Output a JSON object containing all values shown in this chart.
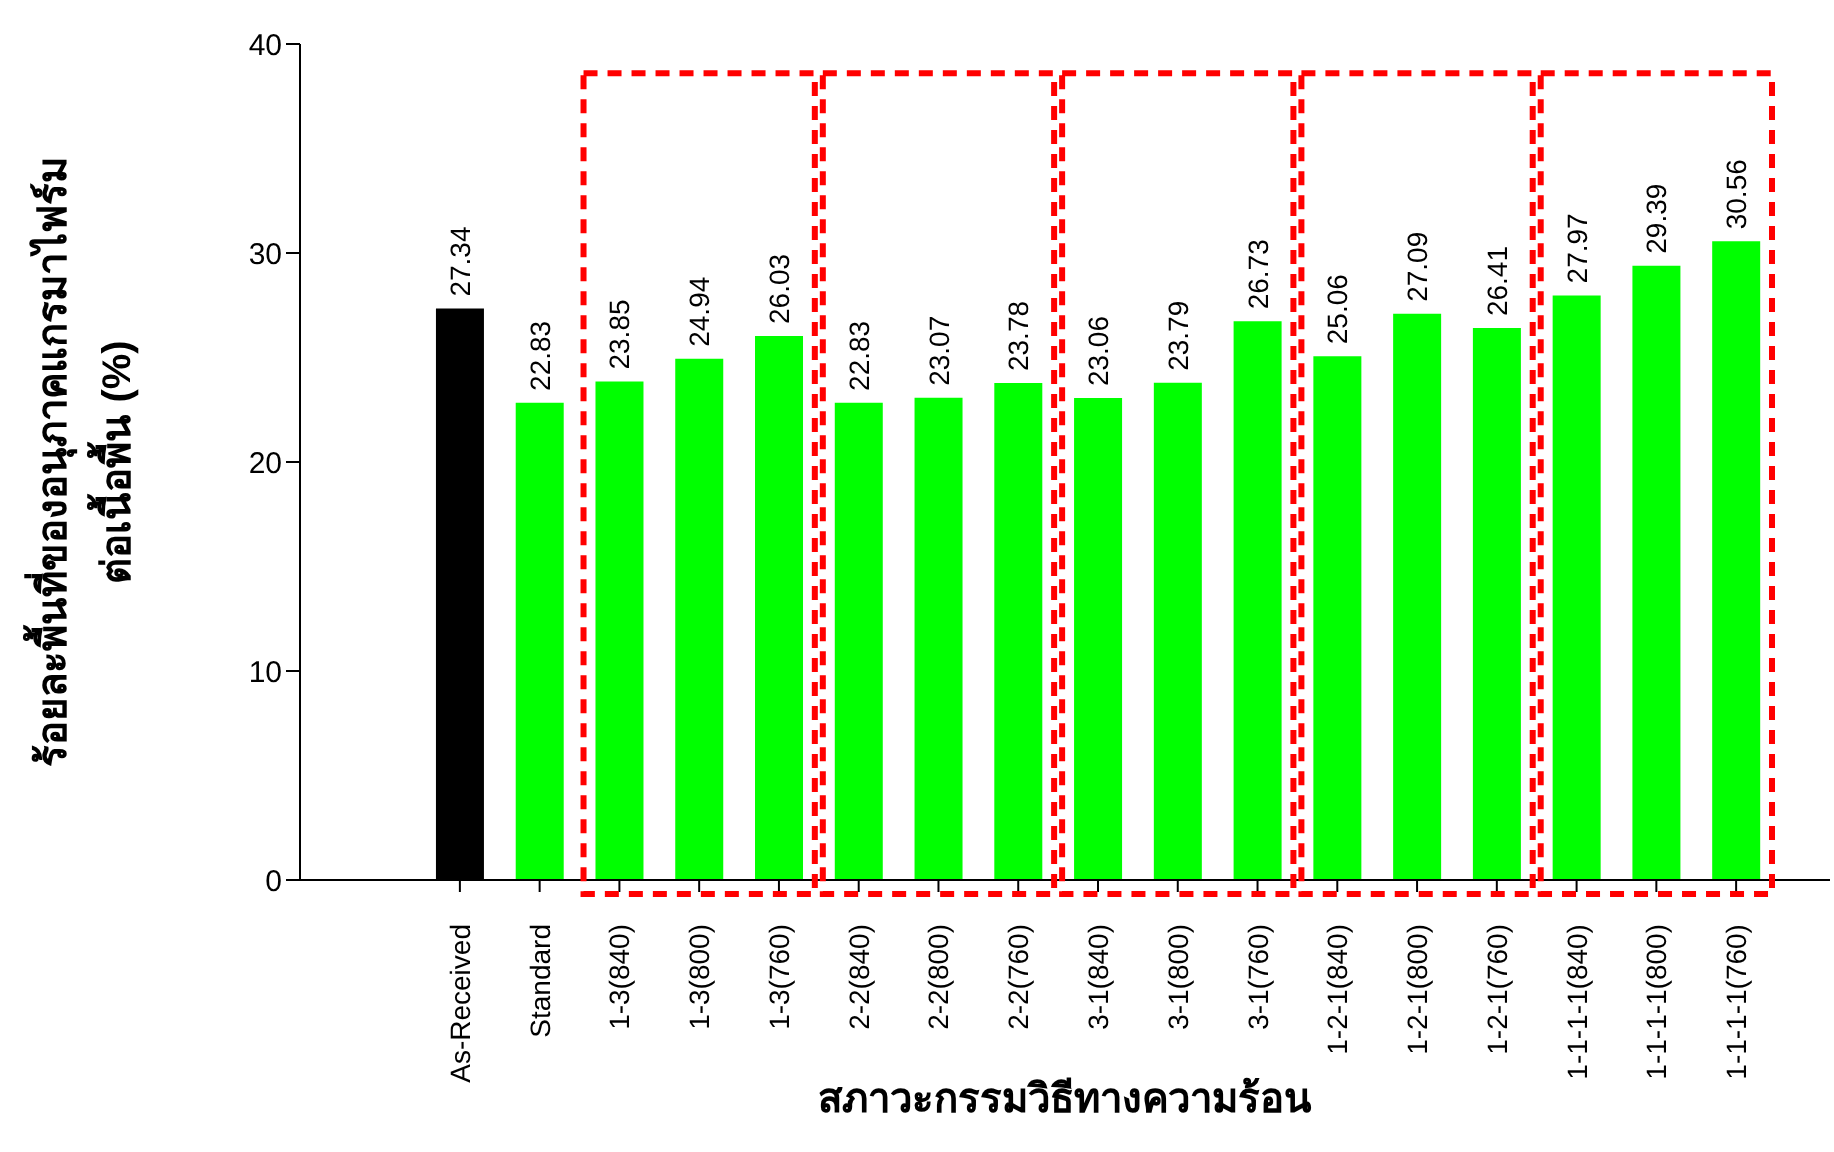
{
  "chart_data": {
    "type": "bar",
    "categories": [
      "As-Received",
      "Standard",
      "1-3(840)",
      "1-3(800)",
      "1-3(760)",
      "2-2(840)",
      "2-2(800)",
      "2-2(760)",
      "3-1(840)",
      "3-1(800)",
      "3-1(760)",
      "1-2-1(840)",
      "1-2-1(800)",
      "1-2-1(760)",
      "1-1-1-1(840)",
      "1-1-1-1(800)",
      "1-1-1-1(760)"
    ],
    "values": [
      27.34,
      22.83,
      23.85,
      24.94,
      26.03,
      22.83,
      23.07,
      23.78,
      23.06,
      23.79,
      26.73,
      25.06,
      27.09,
      26.41,
      27.97,
      29.39,
      30.56
    ],
    "colors": [
      "#000000",
      "#00ff00",
      "#00ff00",
      "#00ff00",
      "#00ff00",
      "#00ff00",
      "#00ff00",
      "#00ff00",
      "#00ff00",
      "#00ff00",
      "#00ff00",
      "#00ff00",
      "#00ff00",
      "#00ff00",
      "#00ff00",
      "#00ff00",
      "#00ff00"
    ],
    "ylim": [
      0,
      40
    ],
    "yticks": [
      0,
      10,
      20,
      30,
      40
    ],
    "xlabel": "สภาวะกรรมวิธีทางความร้อน",
    "ylabel": "ร้อยละพื้นที่ของอนุภาคแกรมาไฟร์ม\nต่อเนื้อพื้น (%)",
    "data_labels": true
  }
}
